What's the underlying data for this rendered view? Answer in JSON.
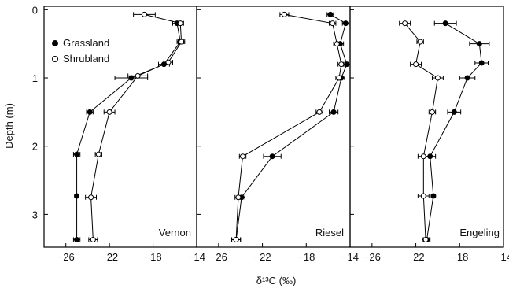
{
  "chart_data": {
    "type": "line",
    "xlabel": "δ¹³C (‰)",
    "ylabel": "Depth (m)",
    "xlim": [
      -28,
      -14
    ],
    "ylim": [
      -0.05,
      3.48
    ],
    "x_ticks": [
      -26,
      -22,
      -18,
      -14
    ],
    "y_ticks": [
      0,
      1,
      2,
      3
    ],
    "legend": {
      "position": "top-left",
      "entries": [
        {
          "name": "Grassland",
          "marker": "filled-circle"
        },
        {
          "name": "Shrubland",
          "marker": "open-circle"
        }
      ]
    },
    "panels": [
      {
        "label": "Vernon",
        "series": [
          {
            "name": "Grassland",
            "marker": "filled",
            "points": [
              {
                "depth": 0.2,
                "value": -15.8,
                "err": 0.4
              },
              {
                "depth": 0.47,
                "value": -15.5,
                "err": 0.3
              },
              {
                "depth": 0.8,
                "value": -17.0,
                "err": 0.5
              },
              {
                "depth": 1.0,
                "value": -20.0,
                "err": 1.5
              },
              {
                "depth": 1.5,
                "value": -23.8,
                "err": 0.3
              },
              {
                "depth": 2.12,
                "value": -25.0,
                "err": 0.3
              },
              {
                "depth": 2.73,
                "value": -25.0,
                "err": 0.2
              },
              {
                "depth": 3.37,
                "value": -25.0,
                "err": 0.3
              }
            ]
          },
          {
            "name": "Shrubland",
            "marker": "open",
            "points": [
              {
                "depth": 0.07,
                "value": -18.8,
                "err": 1.0
              },
              {
                "depth": 0.2,
                "value": -15.5,
                "err": 0.3
              },
              {
                "depth": 0.47,
                "value": -15.4,
                "err": 0.3
              },
              {
                "depth": 0.77,
                "value": -16.6,
                "err": 0.4
              },
              {
                "depth": 0.97,
                "value": -19.4,
                "err": 0.9
              },
              {
                "depth": 1.5,
                "value": -22.0,
                "err": 0.5
              },
              {
                "depth": 2.12,
                "value": -23.0,
                "err": 0.3
              },
              {
                "depth": 2.75,
                "value": -23.7,
                "err": 0.5
              },
              {
                "depth": 3.37,
                "value": -23.5,
                "err": 0.4
              }
            ]
          }
        ]
      },
      {
        "label": "Riesel",
        "series": [
          {
            "name": "Grassland",
            "marker": "filled",
            "points": [
              {
                "depth": 0.07,
                "value": -15.8,
                "err": 0.3
              },
              {
                "depth": 0.2,
                "value": -14.4,
                "err": 0.3
              },
              {
                "depth": 0.5,
                "value": -14.9,
                "err": 0.3
              },
              {
                "depth": 0.8,
                "value": -14.3,
                "err": 0.3
              },
              {
                "depth": 1.0,
                "value": -14.8,
                "err": 0.3
              },
              {
                "depth": 1.5,
                "value": -15.5,
                "err": 0.4
              },
              {
                "depth": 2.15,
                "value": -21.1,
                "err": 0.8
              },
              {
                "depth": 2.75,
                "value": -23.9,
                "err": 0.3
              },
              {
                "depth": 3.37,
                "value": -24.4,
                "err": 0.4
              }
            ]
          },
          {
            "name": "Shrubland",
            "marker": "open",
            "points": [
              {
                "depth": 0.07,
                "value": -20.0,
                "err": 0.4
              },
              {
                "depth": 0.2,
                "value": -15.6,
                "err": 0.3
              },
              {
                "depth": 0.5,
                "value": -15.2,
                "err": 0.3
              },
              {
                "depth": 0.8,
                "value": -14.8,
                "err": 0.3
              },
              {
                "depth": 1.0,
                "value": -15.0,
                "err": 0.3
              },
              {
                "depth": 1.5,
                "value": -16.8,
                "err": 0.3
              },
              {
                "depth": 2.15,
                "value": -23.8,
                "err": 0.3
              },
              {
                "depth": 2.75,
                "value": -24.2,
                "err": 0.3
              },
              {
                "depth": 3.37,
                "value": -24.4,
                "err": 0.4
              }
            ]
          }
        ]
      },
      {
        "label": "Engeling",
        "series": [
          {
            "name": "Grassland",
            "marker": "filled",
            "points": [
              {
                "depth": 0.2,
                "value": -19.3,
                "err": 1.0
              },
              {
                "depth": 0.5,
                "value": -16.2,
                "err": 0.9
              },
              {
                "depth": 0.78,
                "value": -16.0,
                "err": 0.6
              },
              {
                "depth": 1.0,
                "value": -17.3,
                "err": 0.7
              },
              {
                "depth": 1.5,
                "value": -18.5,
                "err": 0.6
              },
              {
                "depth": 2.15,
                "value": -20.7,
                "err": 0.5
              },
              {
                "depth": 2.73,
                "value": -20.4,
                "err": 0.2
              },
              {
                "depth": 3.37,
                "value": -21.0,
                "err": 0.3
              }
            ]
          },
          {
            "name": "Shrubland",
            "marker": "open",
            "points": [
              {
                "depth": 0.2,
                "value": -23.0,
                "err": 0.5
              },
              {
                "depth": 0.47,
                "value": -21.6,
                "err": 0.3
              },
              {
                "depth": 0.8,
                "value": -22.0,
                "err": 0.5
              },
              {
                "depth": 1.0,
                "value": -20.0,
                "err": 0.5
              },
              {
                "depth": 1.5,
                "value": -20.5,
                "err": 0.3
              },
              {
                "depth": 2.15,
                "value": -21.3,
                "err": 0.5
              },
              {
                "depth": 2.73,
                "value": -21.3,
                "err": 0.5
              },
              {
                "depth": 3.37,
                "value": -21.1,
                "err": 0.3
              }
            ]
          }
        ]
      }
    ]
  }
}
